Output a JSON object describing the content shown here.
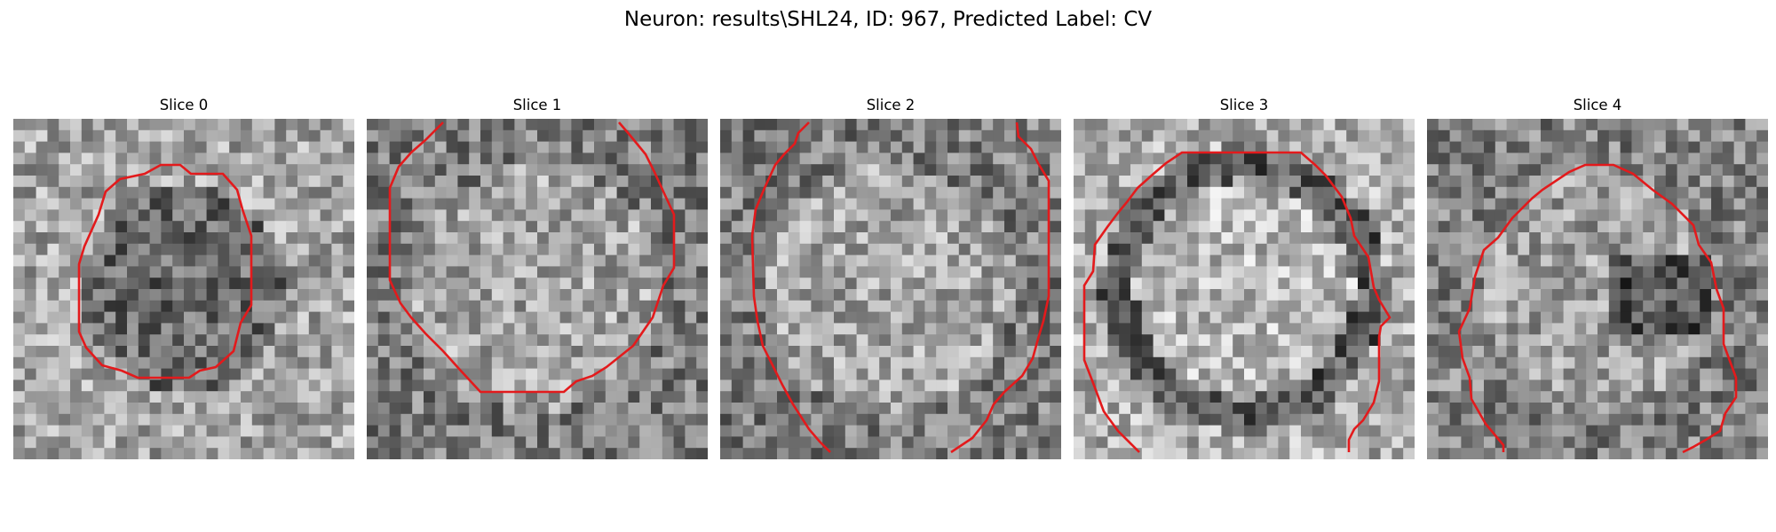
{
  "figure": {
    "title": "Neuron: results\\SHL24, ID: 967, Predicted Label: CV"
  },
  "panels": [
    {
      "title": "Slice 0"
    },
    {
      "title": "Slice 1"
    },
    {
      "title": "Slice 2"
    },
    {
      "title": "Slice 3"
    },
    {
      "title": "Slice 4"
    }
  ],
  "contour_color": "#e31a1c"
}
